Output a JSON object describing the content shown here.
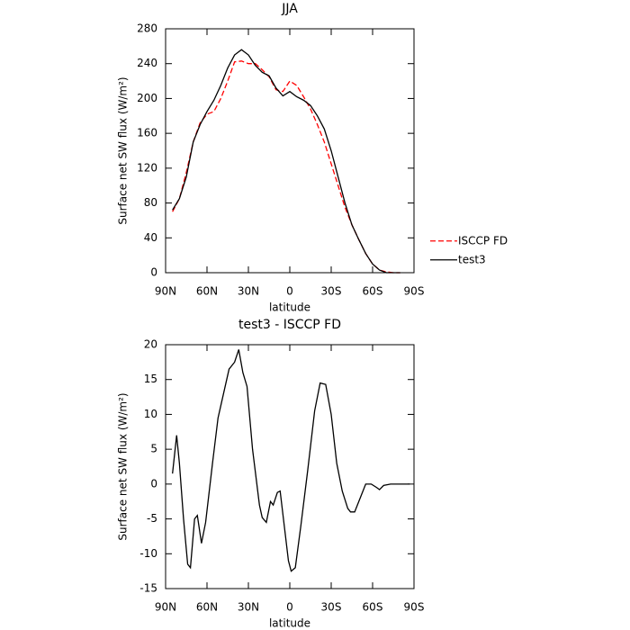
{
  "chart_data": [
    {
      "type": "line",
      "title": "JJA",
      "xlabel": "latitude",
      "ylabel": "Surface net SW flux (W/m²)",
      "x": [
        85,
        80,
        75,
        70,
        65,
        60,
        55,
        50,
        45,
        40,
        35,
        30,
        25,
        20,
        15,
        10,
        5,
        0,
        -5,
        -10,
        -15,
        -20,
        -25,
        -30,
        -35,
        -40,
        -45,
        -50,
        -55,
        -60,
        -65,
        -70,
        -75,
        -80
      ],
      "series": [
        {
          "name": "ISCCP FD",
          "color": "#ff0000",
          "linestyle": "dashed",
          "values": [
            70,
            85,
            115,
            150,
            172,
            182,
            185,
            200,
            220,
            242,
            243,
            240,
            240,
            233,
            225,
            210,
            208,
            220,
            215,
            202,
            188,
            170,
            150,
            125,
            100,
            75,
            55,
            38,
            22,
            10,
            3,
            1,
            0,
            0
          ]
        },
        {
          "name": "test3",
          "color": "#000000",
          "linestyle": "solid",
          "values": [
            72,
            85,
            110,
            150,
            170,
            185,
            198,
            215,
            235,
            250,
            256,
            250,
            238,
            230,
            226,
            212,
            203,
            208,
            202,
            198,
            192,
            180,
            165,
            140,
            110,
            80,
            55,
            38,
            22,
            10,
            3,
            0,
            0,
            0
          ]
        }
      ],
      "xlim": [
        90,
        -90
      ],
      "xticks": [
        {
          "value": 90,
          "label": "90N"
        },
        {
          "value": 60,
          "label": "60N"
        },
        {
          "value": 30,
          "label": "30N"
        },
        0,
        {
          "value": -30,
          "label": "30S"
        },
        {
          "value": -60,
          "label": "60S"
        },
        {
          "value": -90,
          "label": "90S"
        }
      ],
      "ylim": [
        0,
        280
      ],
      "yticks": [
        0,
        40,
        80,
        120,
        160,
        200,
        240,
        280
      ],
      "legend": "right"
    },
    {
      "type": "line",
      "title": "test3 - ISCCP FD",
      "xlabel": "latitude",
      "ylabel": "Surface net SW flux (W/m²)",
      "color": "#000000",
      "x": [
        85,
        82,
        80,
        77,
        74,
        72,
        69,
        67,
        64,
        61,
        56,
        52,
        48,
        44,
        40,
        37,
        34,
        31,
        27,
        22,
        20,
        17,
        14,
        12,
        9,
        7,
        4,
        1,
        -1,
        -4,
        -8,
        -13,
        -18,
        -22,
        -26,
        -30,
        -34,
        -38,
        -42,
        -44,
        -47,
        -51,
        -55,
        -59,
        -63,
        -65,
        -68,
        -73,
        -80,
        -87
      ],
      "values": [
        1.5,
        7,
        3,
        -5,
        -11.5,
        -12,
        -5,
        -4.5,
        -8.5,
        -5.5,
        3,
        9.5,
        13,
        16.5,
        17.5,
        19.3,
        16,
        14,
        5,
        -3,
        -4.8,
        -5.5,
        -2.5,
        -3,
        -1.2,
        -1,
        -6,
        -11,
        -12.5,
        -12,
        -6,
        2,
        10.5,
        14.5,
        14.3,
        10,
        3,
        -1,
        -3.5,
        -4,
        -4,
        -2,
        0,
        0,
        -0.5,
        -0.8,
        -0.2,
        0,
        0,
        0
      ],
      "xlim": [
        90,
        -90
      ],
      "xticks": [
        {
          "value": 90,
          "label": "90N"
        },
        {
          "value": 60,
          "label": "60N"
        },
        {
          "value": 30,
          "label": "30N"
        },
        0,
        {
          "value": -30,
          "label": "30S"
        },
        {
          "value": -60,
          "label": "60S"
        },
        {
          "value": -90,
          "label": "90S"
        }
      ],
      "ylim": [
        -15,
        20
      ],
      "yticks": [
        -15,
        -10,
        -5,
        0,
        5,
        10,
        15,
        20
      ]
    }
  ]
}
